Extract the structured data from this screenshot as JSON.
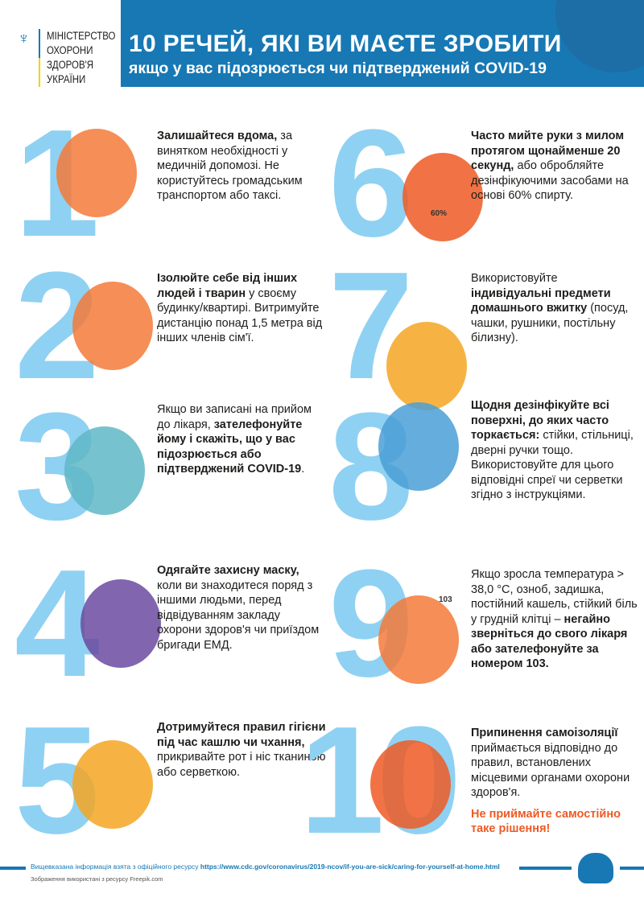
{
  "header": {
    "ministry": [
      "МІНІСТЕРСТВО",
      "ОХОРОНИ",
      "ЗДОРОВ'Я",
      "УКРАЇНИ"
    ],
    "title": "10 РЕЧЕЙ, ЯКІ ВИ МАЄТЕ ЗРОБИТИ",
    "subtitle": "якщо у вас підозрюється чи підтверджений COVID-19"
  },
  "colors": {
    "banner": "#1778b4",
    "numbers": "#8fd1f2",
    "accent": "#ee5a24"
  },
  "items": [
    {
      "n": "1",
      "segments": [
        {
          "text": "Залишайтеся вдома,",
          "bold": true
        },
        {
          "text": " за винятком необхідності у медичній допомозі. Не користуйтесь громадським транспортом або таксі.",
          "bold": false
        }
      ]
    },
    {
      "n": "2",
      "segments": [
        {
          "text": "Ізолюйте себе від інших людей і тварин",
          "bold": true
        },
        {
          "text": " у своєму будинку/квартирі. Витримуйте дистанцію понад 1,5 метра від інших членів сім'ї.",
          "bold": false
        }
      ]
    },
    {
      "n": "3",
      "segments": [
        {
          "text": "Якщо ви записані на прийом до лікаря, ",
          "bold": false
        },
        {
          "text": "зателефонуйте йому і скажіть, що у вас підозрюється або підтверджений COVID-19",
          "bold": true
        },
        {
          "text": ".",
          "bold": false
        }
      ]
    },
    {
      "n": "4",
      "segments": [
        {
          "text": "Одягайте захисну маску,",
          "bold": true
        },
        {
          "text": " коли ви знаходитеся поряд з іншими людьми, перед відвідуванням закладу охорони здоров'я чи приїздом бригади ЕМД.",
          "bold": false
        }
      ]
    },
    {
      "n": "5",
      "segments": [
        {
          "text": "Дотримуйтеся правил гігієни під час кашлю чи чхання,",
          "bold": true
        },
        {
          "text": " прикривайте рот і ніс тканиною або серветкою.",
          "bold": false
        }
      ]
    },
    {
      "n": "6",
      "segments": [
        {
          "text": "Часто мийте руки з милом протягом щонайменше 20 секунд,",
          "bold": true
        },
        {
          "text": " або обробляйте дезінфікуючими засобами на основі 60% спирту.",
          "bold": false
        }
      ],
      "label": "60%"
    },
    {
      "n": "7",
      "segments": [
        {
          "text": "Використовуйте ",
          "bold": false
        },
        {
          "text": "індивідуальні предмети домашнього вжитку",
          "bold": true
        },
        {
          "text": " (посуд, чашки, рушники, постільну білизну).",
          "bold": false
        }
      ]
    },
    {
      "n": "8",
      "segments": [
        {
          "text": "Щодня дезінфікуйте всі поверхні, до яких часто торкається:",
          "bold": true
        },
        {
          "text": " стійки, стільниці, дверні ручки тощо. Використовуйте для цього відповідні спреї чи серветки згідно з інструкціями.",
          "bold": false
        }
      ]
    },
    {
      "n": "9",
      "segments": [
        {
          "text": "Якщо зросла температура > 38,0 °C, озноб, задишка, постійний кашель, стійкий біль у грудній клітці – ",
          "bold": false
        },
        {
          "text": "негайно зверніться до свого лікаря або зателефонуйте за номером 103.",
          "bold": true
        }
      ],
      "label": "103"
    },
    {
      "n": "10",
      "segments": [
        {
          "text": "Припинення самоізоляції",
          "bold": true
        },
        {
          "text": " приймається відповідно до правил, встановлених місцевими органами охорони здоров'я.",
          "bold": false
        }
      ],
      "warning": "Не приймайте самостійно таке рішення!"
    }
  ],
  "footer": {
    "source_text": "Вищевказана інформація  взята з офіційного ресурсу ",
    "source_url": "https://www.cdc.gov/coronavirus/2019-ncov/if-you-are-sick/caring-for-yourself-at-home.html",
    "images_credit": "Зображення використані з ресурсу Freepik.com"
  }
}
